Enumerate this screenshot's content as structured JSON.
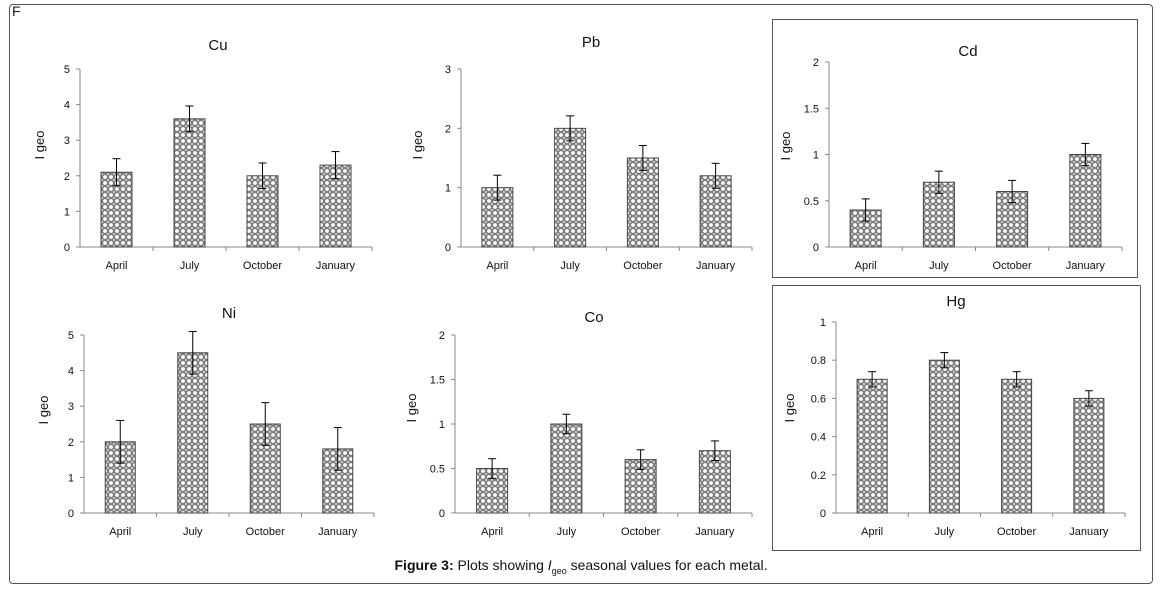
{
  "panel_letter": "F",
  "caption": {
    "figure_label": "Figure 3:",
    "text_before": "Plots showing ",
    "italic_I": "I",
    "subscript": "geo",
    "text_after": " seasonal values for each metal."
  },
  "colors": {
    "bar_fill": "#888888",
    "bar_pattern": "#ffffff",
    "axis": "#888888",
    "error": "#000000"
  },
  "chart_data": [
    {
      "type": "bar",
      "title": "Cu",
      "ylabel": "I geo",
      "xlabel": "",
      "categories": [
        "April",
        "July",
        "October",
        "January"
      ],
      "values": [
        2.1,
        3.6,
        2.0,
        2.3
      ],
      "errors": [
        0.38,
        0.36,
        0.36,
        0.38
      ],
      "ylim": [
        0,
        5
      ],
      "yticks": [
        0,
        1,
        2,
        3,
        4,
        5
      ],
      "yticklabels": [
        "0",
        "1",
        "2",
        "3",
        "4",
        "5"
      ],
      "grid": false,
      "legend": "none"
    },
    {
      "type": "bar",
      "title": "Pb",
      "ylabel": "I geo",
      "xlabel": "",
      "categories": [
        "April",
        "July",
        "October",
        "January"
      ],
      "values": [
        1.0,
        2.0,
        1.5,
        1.2
      ],
      "errors": [
        0.21,
        0.21,
        0.21,
        0.21
      ],
      "ylim": [
        0,
        3
      ],
      "yticks": [
        0,
        1,
        2,
        3
      ],
      "yticklabels": [
        "0",
        "1",
        "2",
        "3"
      ],
      "grid": false,
      "legend": "none"
    },
    {
      "type": "bar",
      "title": "Cd",
      "ylabel": "I geo",
      "xlabel": "",
      "categories": [
        "April",
        "July",
        "October",
        "January"
      ],
      "values": [
        0.4,
        0.7,
        0.6,
        1.0
      ],
      "errors": [
        0.12,
        0.12,
        0.12,
        0.12
      ],
      "ylim": [
        0,
        2
      ],
      "yticks": [
        0,
        0.5,
        1,
        1.5,
        2
      ],
      "yticklabels": [
        "0",
        "0.5",
        "1",
        "1.5",
        "2"
      ],
      "grid": false,
      "legend": "none"
    },
    {
      "type": "bar",
      "title": "Ni",
      "ylabel": "I geo",
      "xlabel": "",
      "categories": [
        "April",
        "July",
        "October",
        "January"
      ],
      "values": [
        2.0,
        4.5,
        2.5,
        1.8
      ],
      "errors": [
        0.6,
        0.6,
        0.6,
        0.6
      ],
      "ylim": [
        0,
        5
      ],
      "yticks": [
        0,
        1,
        2,
        3,
        4,
        5
      ],
      "yticklabels": [
        "0",
        "1",
        "2",
        "3",
        "4",
        "5"
      ],
      "grid": false,
      "legend": "none"
    },
    {
      "type": "bar",
      "title": "Co",
      "ylabel": "I geo",
      "xlabel": "",
      "categories": [
        "April",
        "July",
        "October",
        "January"
      ],
      "values": [
        0.5,
        1.0,
        0.6,
        0.7
      ],
      "errors": [
        0.11,
        0.11,
        0.11,
        0.11
      ],
      "ylim": [
        0,
        2
      ],
      "yticks": [
        0,
        0.5,
        1,
        1.5,
        2
      ],
      "yticklabels": [
        "0",
        "0.5",
        "1",
        "1.5",
        "2"
      ],
      "grid": false,
      "legend": "none"
    },
    {
      "type": "bar",
      "title": "Hg",
      "ylabel": "I geo",
      "xlabel": "",
      "categories": [
        "April",
        "July",
        "October",
        "January"
      ],
      "values": [
        0.7,
        0.8,
        0.7,
        0.6
      ],
      "errors": [
        0.04,
        0.04,
        0.04,
        0.04
      ],
      "ylim": [
        0,
        1
      ],
      "yticks": [
        0,
        0.2,
        0.4,
        0.6,
        0.8,
        1
      ],
      "yticklabels": [
        "0",
        "0.2",
        "0.4",
        "0.6",
        "0.8",
        "1"
      ],
      "grid": false,
      "legend": "none"
    }
  ]
}
